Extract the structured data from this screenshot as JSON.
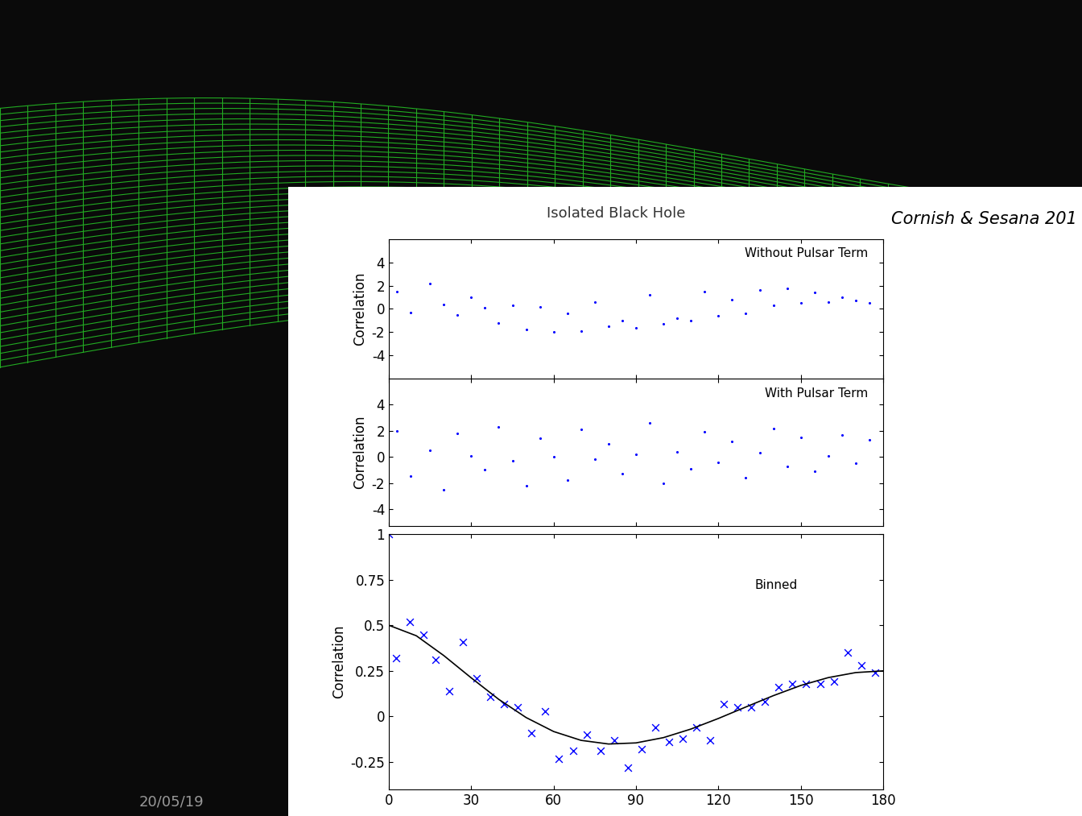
{
  "header": {
    "title": "Isolated Black Hole",
    "credit": "Cornish & Sesana 201",
    "date": "20/05/19"
  },
  "chart_data": [
    {
      "type": "scatter",
      "annotation": "Without Pulsar Term",
      "y_label": "Correlation",
      "xlim": [
        0,
        180
      ],
      "xticks": [
        0,
        30,
        60,
        90,
        120,
        150,
        180
      ],
      "ylim": [
        -6,
        6
      ],
      "yticks": [
        -4,
        -2,
        0,
        2,
        4
      ],
      "tick_labels": "y",
      "grid": false,
      "series": [
        {
          "color": "#0000ff",
          "marker": "point",
          "x": [
            3,
            8,
            15,
            20,
            25,
            30,
            35,
            40,
            45,
            50,
            55,
            60,
            65,
            70,
            75,
            80,
            85,
            90,
            95,
            100,
            105,
            110,
            115,
            120,
            125,
            130,
            135,
            140,
            145,
            150,
            155,
            160,
            165,
            170,
            175
          ],
          "values": [
            1.5,
            -0.3,
            2.2,
            0.4,
            -0.5,
            1.0,
            0.1,
            -1.2,
            0.3,
            -1.8,
            0.2,
            -2.0,
            -0.4,
            -1.9,
            0.6,
            -1.5,
            -1.0,
            -1.6,
            1.2,
            -1.3,
            -0.8,
            -1.0,
            1.5,
            -0.6,
            0.8,
            -0.4,
            1.6,
            0.3,
            1.8,
            0.5,
            1.4,
            0.6,
            1.0,
            0.7,
            0.5
          ]
        }
      ]
    },
    {
      "type": "scatter",
      "annotation": "With Pulsar Term",
      "y_label": "Correlation",
      "xlim": [
        0,
        180
      ],
      "xticks": [
        0,
        30,
        60,
        90,
        120,
        150,
        180
      ],
      "ylim": [
        -5.3,
        6
      ],
      "yticks": [
        -4,
        -2,
        0,
        2,
        4
      ],
      "tick_labels": "y",
      "grid": false,
      "series": [
        {
          "color": "#0000ff",
          "marker": "point",
          "x": [
            3,
            8,
            15,
            20,
            25,
            30,
            35,
            40,
            45,
            50,
            55,
            60,
            65,
            70,
            75,
            80,
            85,
            90,
            95,
            100,
            105,
            110,
            115,
            120,
            125,
            130,
            135,
            140,
            145,
            150,
            155,
            160,
            165,
            170,
            175
          ],
          "values": [
            2.0,
            -1.5,
            0.5,
            -2.5,
            1.8,
            0.1,
            -1.0,
            2.3,
            -0.3,
            -2.2,
            1.4,
            0.0,
            -1.8,
            2.1,
            -0.2,
            1.0,
            -1.3,
            0.2,
            2.6,
            -2.0,
            0.4,
            -0.9,
            1.9,
            -0.4,
            1.2,
            -1.6,
            0.3,
            2.2,
            -0.7,
            1.5,
            -1.1,
            0.1,
            1.7,
            -0.5,
            1.3
          ]
        }
      ]
    },
    {
      "type": "scatter",
      "annotation": "Binned",
      "y_label": "Correlation",
      "xlim": [
        0,
        180
      ],
      "xticks": [
        0,
        30,
        60,
        90,
        120,
        150,
        180
      ],
      "ylim": [
        -0.4,
        1
      ],
      "yticks": [
        -0.25,
        0,
        0.25,
        0.5,
        0.75,
        1
      ],
      "grid": false,
      "series": [
        {
          "type": "scatter",
          "color": "#0000ff",
          "marker": "x",
          "x": [
            0,
            2.5,
            7.5,
            12.5,
            17,
            22,
            27,
            32,
            37,
            42,
            47,
            52,
            57,
            62,
            67,
            72,
            77,
            82,
            87,
            92,
            97,
            102,
            107,
            112,
            117,
            122,
            127,
            132,
            137,
            142,
            147,
            152,
            157,
            162,
            167,
            172,
            177
          ],
          "values": [
            1,
            0.32,
            0.52,
            0.45,
            0.31,
            0.14,
            0.41,
            0.21,
            0.11,
            0.07,
            0.05,
            -0.09,
            0.03,
            -0.23,
            -0.19,
            -0.1,
            -0.19,
            -0.13,
            -0.28,
            -0.18,
            -0.06,
            -0.14,
            -0.12,
            -0.06,
            -0.13,
            0.07,
            0.05,
            0.05,
            0.08,
            0.16,
            0.18,
            0.18,
            0.18,
            0.19,
            0.35,
            0.28,
            0.24
          ]
        },
        {
          "type": "line",
          "color": "#000000",
          "line_style": "solid",
          "x": [
            0,
            10,
            20,
            30,
            40,
            50,
            60,
            70,
            80,
            90,
            100,
            110,
            120,
            130,
            140,
            150,
            160,
            170,
            180
          ],
          "values": [
            0.5,
            0.4425,
            0.334,
            0.2116,
            0.094,
            -0.006,
            -0.0825,
            -0.131,
            -0.151,
            -0.145,
            -0.116,
            -0.069,
            -0.011,
            0.052,
            0.114,
            0.17,
            0.213,
            0.2406,
            0.25
          ]
        }
      ]
    }
  ]
}
